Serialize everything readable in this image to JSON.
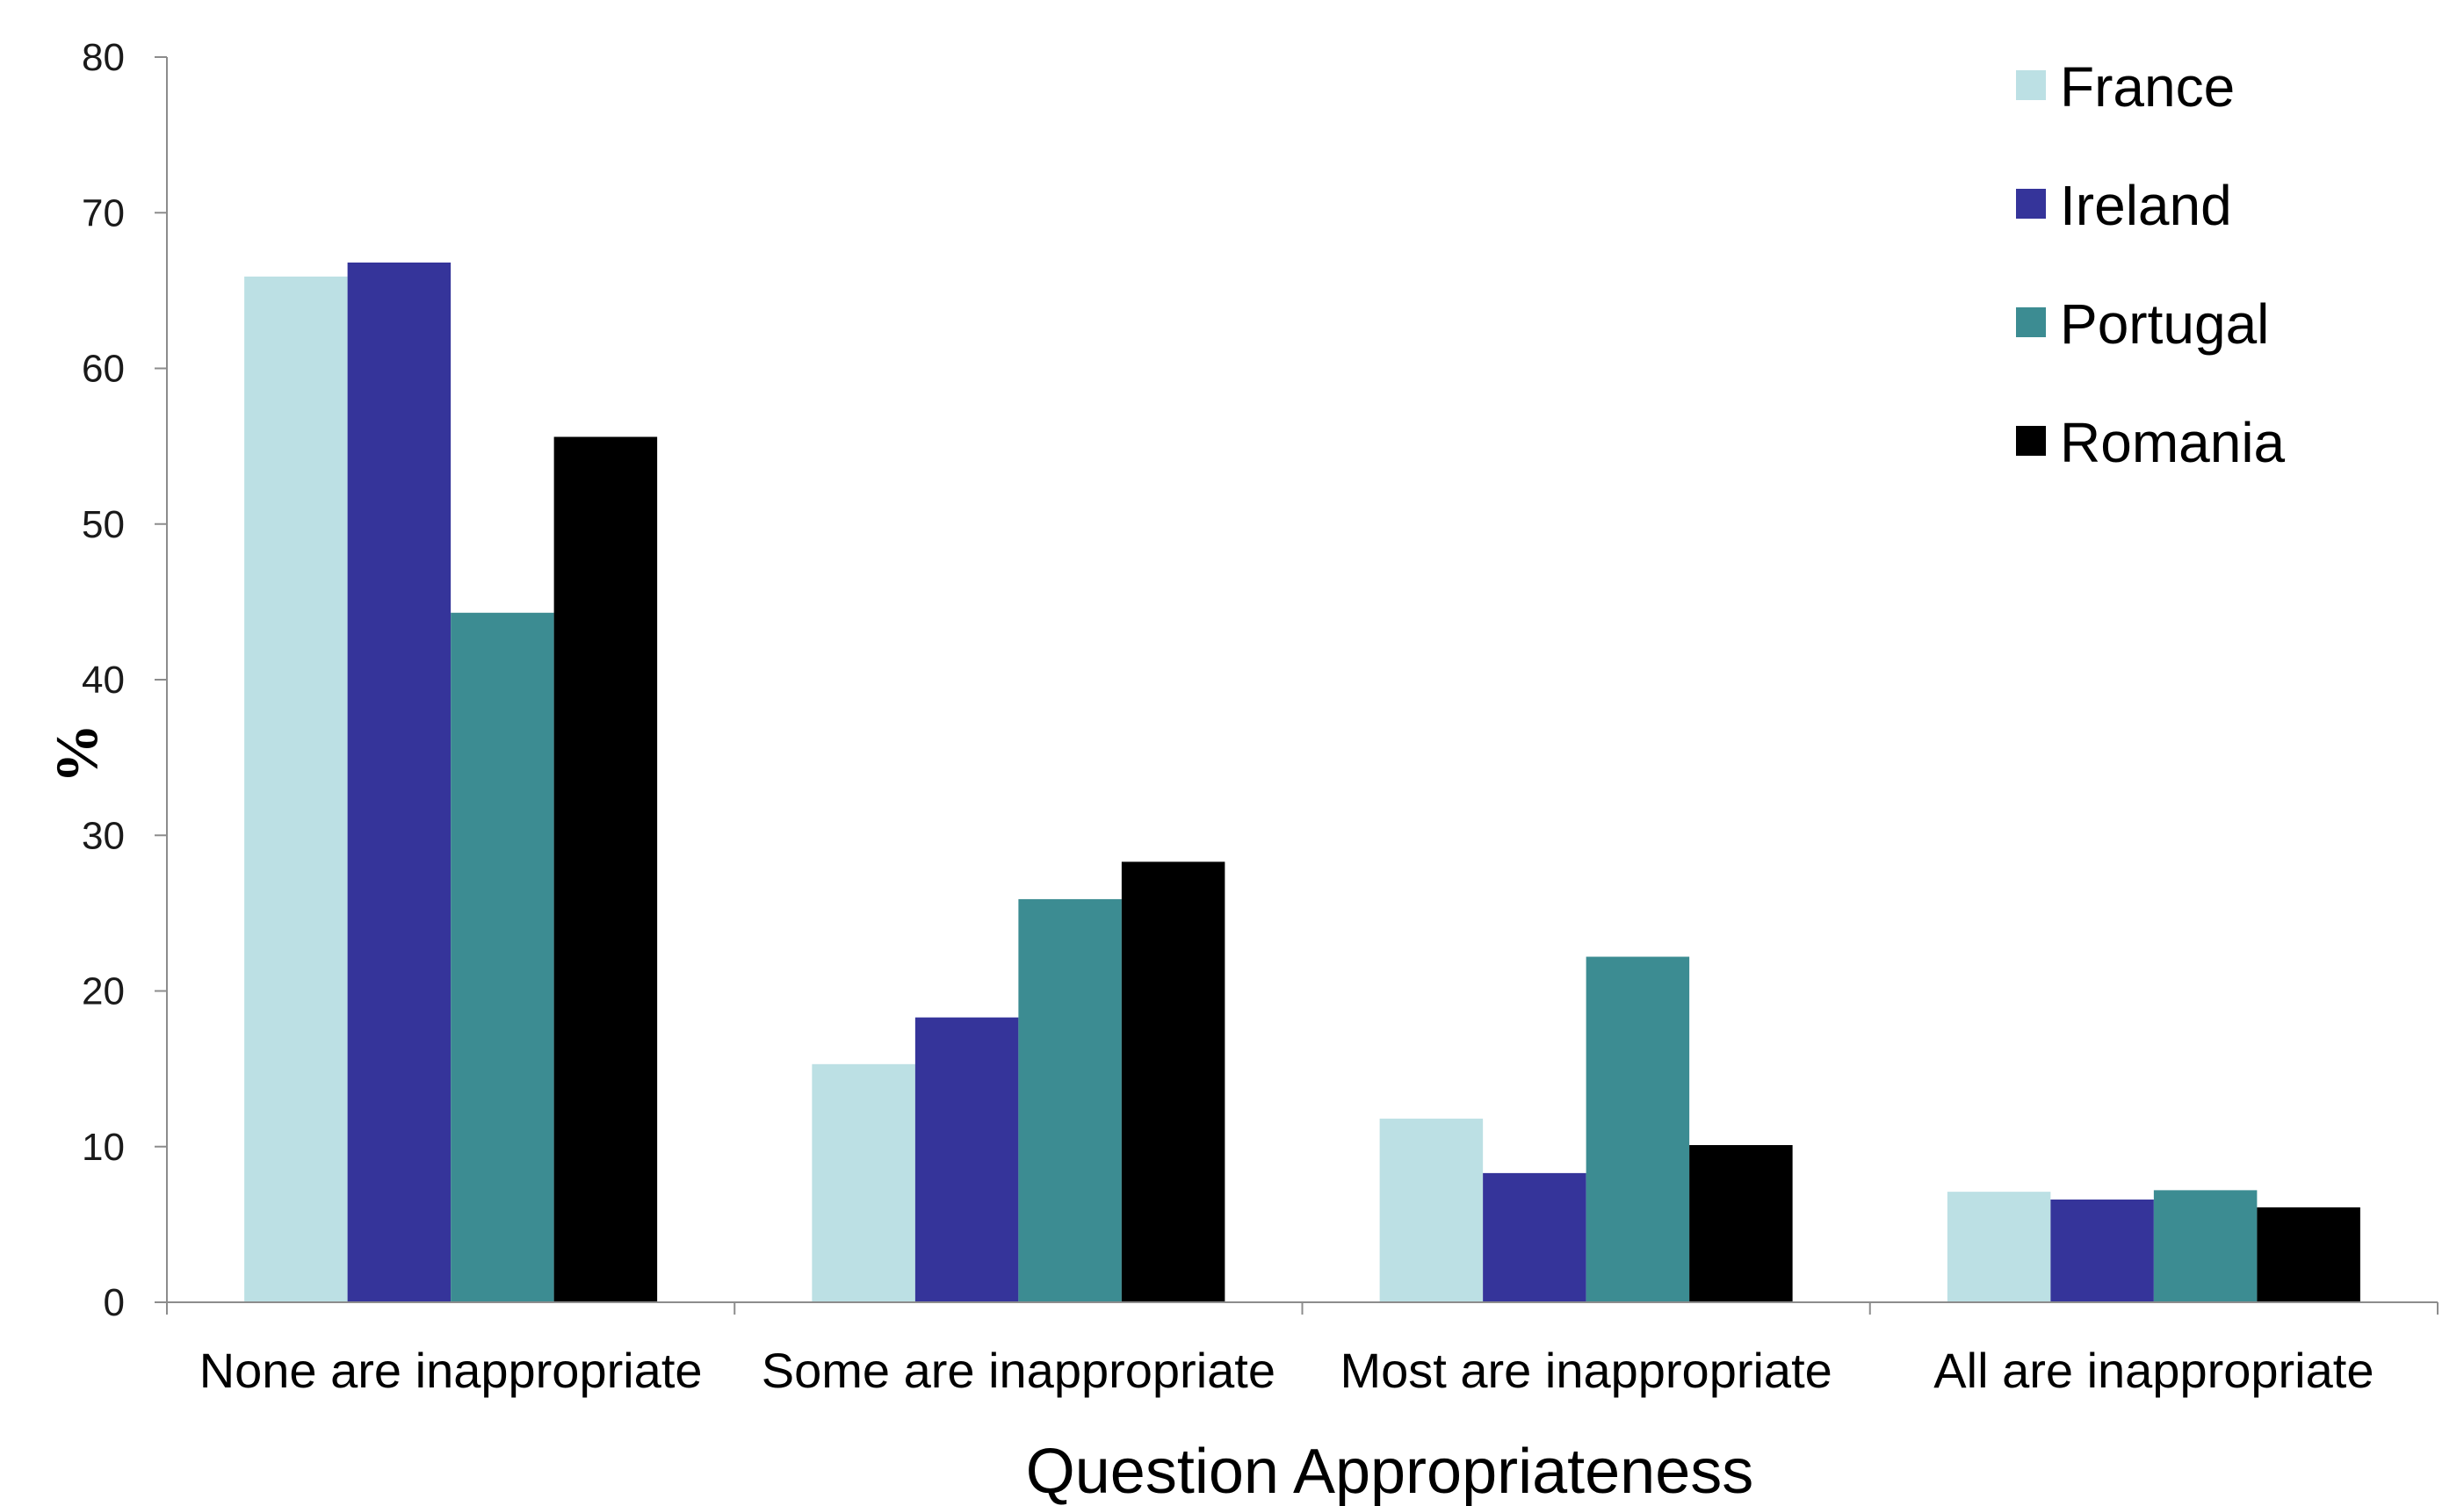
{
  "chart_data": {
    "type": "bar",
    "categories": [
      "None are inappropriate",
      "Some are inappropriate",
      "Most are inappropriate",
      "All are inappropriate"
    ],
    "series": [
      {
        "name": "France",
        "color": "#bce0e4",
        "values": [
          65.9,
          15.3,
          11.8,
          7.1
        ]
      },
      {
        "name": "Ireland",
        "color": "#35349a",
        "values": [
          66.8,
          18.3,
          8.3,
          6.6
        ]
      },
      {
        "name": "Portugal",
        "color": "#3c8c92",
        "values": [
          44.3,
          25.9,
          22.2,
          7.2
        ]
      },
      {
        "name": "Romania",
        "color": "#000000",
        "values": [
          55.6,
          28.3,
          10.1,
          6.1
        ]
      }
    ],
    "xlabel": "Question Appropriateness",
    "ylabel": "%",
    "ylim": [
      0,
      80
    ],
    "yticks": [
      0,
      10,
      20,
      30,
      40,
      50,
      60,
      70,
      80
    ],
    "grid": false,
    "legend_position": "top-right"
  }
}
